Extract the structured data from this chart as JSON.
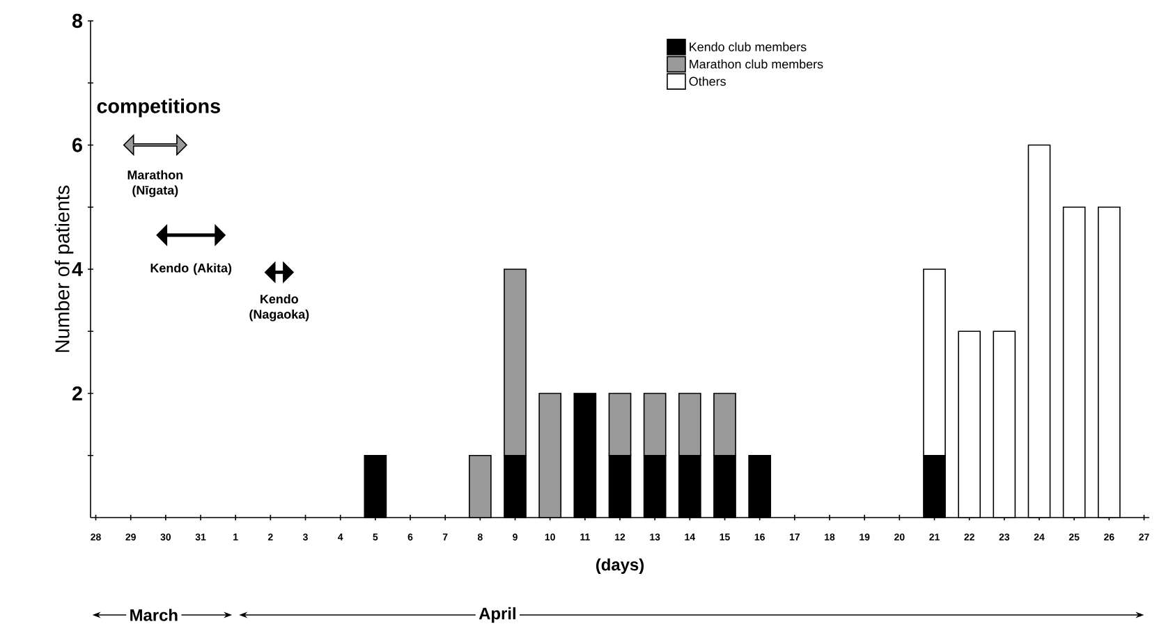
{
  "chart_data": {
    "type": "bar",
    "stacked": true,
    "xlabel": "(days)",
    "ylabel": "Number of patients",
    "categories": [
      "28",
      "29",
      "30",
      "31",
      "1",
      "2",
      "3",
      "4",
      "5",
      "6",
      "7",
      "8",
      "9",
      "10",
      "11",
      "12",
      "13",
      "14",
      "15",
      "16",
      "17",
      "18",
      "19",
      "20",
      "21",
      "22",
      "23",
      "24",
      "25",
      "26",
      "27"
    ],
    "series": [
      {
        "name": "Kendo club members",
        "color": "#000000",
        "values": [
          0,
          0,
          0,
          0,
          0,
          0,
          0,
          0,
          1,
          0,
          0,
          0,
          1,
          0,
          2,
          1,
          1,
          1,
          1,
          1,
          0,
          0,
          0,
          0,
          1,
          0,
          0,
          0,
          0,
          0,
          0
        ]
      },
      {
        "name": "Marathon club members",
        "color": "#9a9a9a",
        "values": [
          0,
          0,
          0,
          0,
          0,
          0,
          0,
          0,
          0,
          0,
          0,
          1,
          3,
          2,
          0,
          1,
          1,
          1,
          1,
          0,
          0,
          0,
          0,
          0,
          0,
          0,
          0,
          0,
          0,
          0,
          0
        ]
      },
      {
        "name": "Others",
        "color": "#ffffff",
        "values": [
          0,
          0,
          0,
          0,
          0,
          0,
          0,
          0,
          0,
          0,
          0,
          0,
          0,
          0,
          0,
          0,
          0,
          0,
          0,
          0,
          0,
          0,
          0,
          0,
          3,
          3,
          3,
          6,
          5,
          5,
          0
        ]
      }
    ],
    "ylim": [
      0,
      8
    ],
    "yticks": [
      {
        "value": 1,
        "label": null
      },
      2,
      {
        "value": 3,
        "label": null
      },
      4,
      {
        "value": 5,
        "label": null
      },
      6,
      {
        "value": 7,
        "label": null
      },
      8
    ],
    "legend": "top right",
    "annotations": [
      "competitions",
      "Marathon (Nīgata)",
      "Kendo (Akita)",
      "Kendo (Nagaoka)",
      "March",
      "April"
    ]
  }
}
